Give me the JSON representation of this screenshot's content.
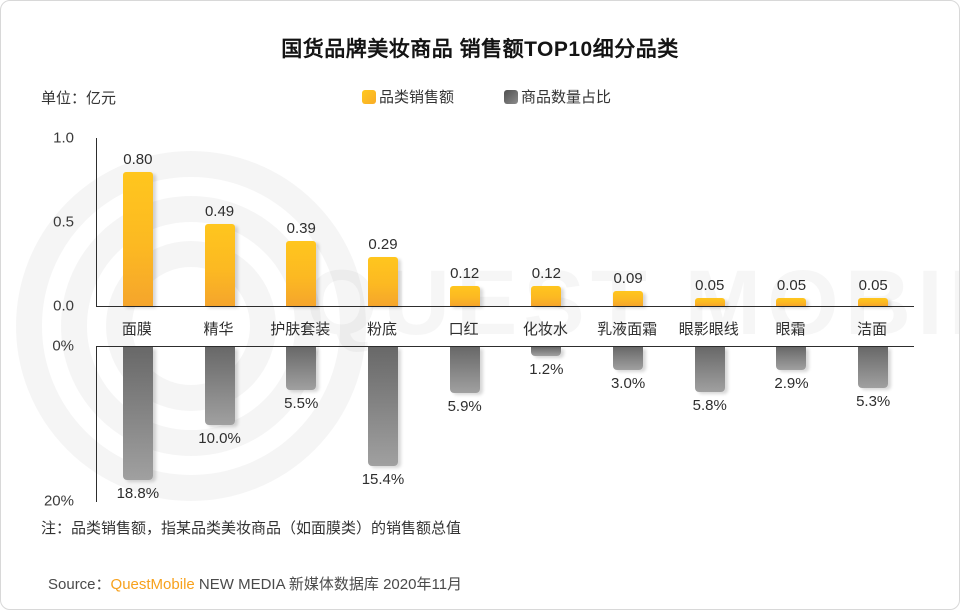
{
  "header": {
    "title": "国货品牌美妆商品 销售额TOP10细分品类",
    "unit_label": "单位：亿元"
  },
  "legend": {
    "sales": {
      "label": "品类销售额",
      "color": "#FFC21E"
    },
    "share": {
      "label": "商品数量占比",
      "color": "#6E6E6E"
    }
  },
  "chart_data": [
    {
      "type": "bar",
      "name": "品类销售额",
      "orientation": "up",
      "categories": [
        "面膜",
        "精华",
        "护肤套装",
        "粉底",
        "口红",
        "化妆水",
        "乳液面霜",
        "眼影眼线",
        "眼霜",
        "洁面"
      ],
      "values": [
        0.8,
        0.49,
        0.39,
        0.29,
        0.12,
        0.12,
        0.09,
        0.05,
        0.05,
        0.05
      ],
      "value_labels": [
        "0.80",
        "0.49",
        "0.39",
        "0.29",
        "0.12",
        "0.12",
        "0.09",
        "0.05",
        "0.05",
        "0.05"
      ],
      "ylabel": "亿元",
      "ylim": [
        0,
        1.0
      ],
      "yticks": [
        "1.0",
        "0.5",
        "0.0"
      ],
      "bar_color": "#FFC21E"
    },
    {
      "type": "bar",
      "name": "商品数量占比",
      "orientation": "down",
      "categories": [
        "面膜",
        "精华",
        "护肤套装",
        "粉底",
        "口红",
        "化妆水",
        "乳液面霜",
        "眼影眼线",
        "眼霜",
        "洁面"
      ],
      "values": [
        18.8,
        10.0,
        5.5,
        15.4,
        5.9,
        1.2,
        3.0,
        5.8,
        2.9,
        5.3
      ],
      "value_labels": [
        "18.8%",
        "10.0%",
        "5.5%",
        "15.4%",
        "5.9%",
        "1.2%",
        "3.0%",
        "5.8%",
        "2.9%",
        "5.3%"
      ],
      "ylabel": "%",
      "ylim": [
        0,
        20
      ],
      "yticks": [
        "0%",
        "20%"
      ],
      "bar_color": "#6E6E6E"
    }
  ],
  "note": "注：品类销售额，指某品类美妆商品（如面膜类）的销售额总值",
  "source": {
    "prefix": "Source：",
    "brand": "QuestMobile",
    "suffix": " NEW MEDIA 新媒体数据库 2020年11月"
  },
  "watermark": "QUEST MOBILE",
  "colors": {
    "bar_yellow_top": "#FFC61E",
    "bar_yellow_bottom": "#F5A52C",
    "bar_gray_top": "#686868",
    "bar_gray_bottom": "#A0A0A0",
    "brand_orange": "#F7A11C"
  }
}
